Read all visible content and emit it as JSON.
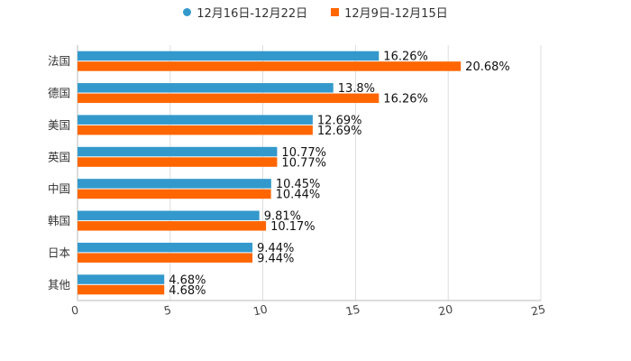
{
  "chart_data": {
    "type": "bar",
    "orientation": "horizontal",
    "title": "",
    "xlabel": "",
    "ylabel": "",
    "categories": [
      "法国",
      "德国",
      "美国",
      "英国",
      "中国",
      "韩国",
      "日本",
      "其他"
    ],
    "series": [
      {
        "name": "12月16日-12月22日",
        "color": "#3399CC",
        "values": [
          16.26,
          13.8,
          12.69,
          10.77,
          10.45,
          9.81,
          9.44,
          4.68
        ],
        "labels": [
          "16.26%",
          "13.8%",
          "12.69%",
          "10.77%",
          "10.45%",
          "9.81%",
          "9.44%",
          "4.68%"
        ]
      },
      {
        "name": "12月9日-12月15日",
        "color": "#FF6600",
        "values": [
          20.68,
          16.26,
          12.69,
          10.77,
          10.44,
          10.17,
          9.44,
          4.68
        ],
        "labels": [
          "20.68%",
          "16.26%",
          "12.69%",
          "10.77%",
          "10.44%",
          "10.17%",
          "9.44%",
          "4.68%"
        ]
      }
    ],
    "xlim": [
      0,
      25
    ],
    "xticks": [
      0,
      5,
      10,
      15,
      20,
      25
    ],
    "xtick_labels": [
      "0",
      "5",
      "10",
      "15",
      "20",
      "25"
    ],
    "grid": true,
    "legend_position": "top-center"
  }
}
